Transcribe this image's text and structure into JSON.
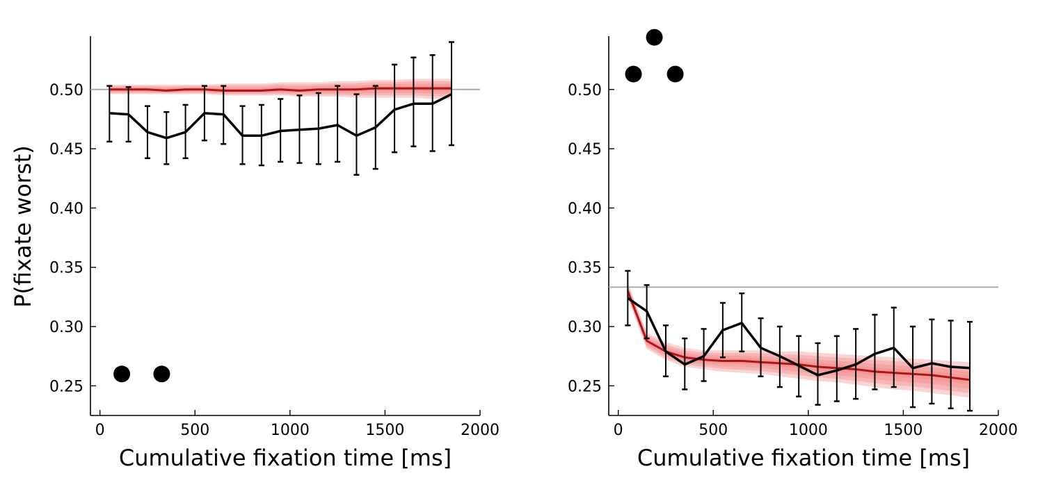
{
  "figure": {
    "ylabel": "P(fixate worst)"
  },
  "chart_data": [
    {
      "type": "line",
      "panel": "left",
      "xlabel": "Cumulative fixation time [ms]",
      "ylabel": "P(fixate worst)",
      "xlim": [
        -50,
        2000
      ],
      "ylim": [
        0.225,
        0.545
      ],
      "xticks": [
        0,
        500,
        1000,
        1500,
        2000
      ],
      "xtick_labels": [
        "0",
        "500",
        "1000",
        "1500",
        "2000"
      ],
      "yticks": [
        0.25,
        0.3,
        0.35,
        0.4,
        0.45,
        0.5
      ],
      "ytick_labels": [
        "0.25",
        "0.30",
        "0.35",
        "0.40",
        "0.45",
        "0.50"
      ],
      "chance_level": 0.5,
      "grid": false,
      "x": [
        50,
        150,
        250,
        350,
        450,
        550,
        650,
        750,
        850,
        950,
        1050,
        1150,
        1250,
        1350,
        1450,
        1550,
        1650,
        1750,
        1850
      ],
      "series": [
        {
          "role": "data",
          "values": [
            0.48,
            0.479,
            0.464,
            0.459,
            0.464,
            0.48,
            0.479,
            0.461,
            0.461,
            0.465,
            0.466,
            0.467,
            0.47,
            0.461,
            0.468,
            0.483,
            0.488,
            0.488,
            0.496
          ],
          "err_low": [
            0.456,
            0.456,
            0.442,
            0.437,
            0.442,
            0.457,
            0.454,
            0.437,
            0.436,
            0.439,
            0.438,
            0.437,
            0.439,
            0.428,
            0.433,
            0.447,
            0.452,
            0.448,
            0.453
          ],
          "err_high": [
            0.503,
            0.502,
            0.486,
            0.481,
            0.487,
            0.503,
            0.503,
            0.486,
            0.487,
            0.492,
            0.495,
            0.497,
            0.503,
            0.496,
            0.503,
            0.521,
            0.527,
            0.529,
            0.54
          ],
          "color": "#000000"
        },
        {
          "role": "model-mean",
          "values": [
            0.5,
            0.5,
            0.5,
            0.499,
            0.5,
            0.5,
            0.499,
            0.499,
            0.499,
            0.5,
            0.499,
            0.5,
            0.5,
            0.5,
            0.501,
            0.501,
            0.501,
            0.501,
            0.501
          ],
          "band_low": [
            0.496,
            0.496,
            0.496,
            0.496,
            0.496,
            0.496,
            0.495,
            0.495,
            0.495,
            0.495,
            0.494,
            0.494,
            0.494,
            0.493,
            0.493,
            0.493,
            0.493,
            0.492,
            0.492
          ],
          "band_high": [
            0.504,
            0.504,
            0.504,
            0.504,
            0.504,
            0.504,
            0.505,
            0.505,
            0.505,
            0.506,
            0.506,
            0.506,
            0.507,
            0.507,
            0.508,
            0.508,
            0.509,
            0.509,
            0.509
          ],
          "color": "#b01515",
          "band_color": "#f08080"
        }
      ],
      "markers": {
        "x": [
          115,
          325
        ],
        "y": [
          0.26,
          0.26
        ],
        "color": "#000000"
      }
    },
    {
      "type": "line",
      "panel": "right",
      "xlabel": "Cumulative fixation time [ms]",
      "ylabel": "",
      "xlim": [
        -50,
        2000
      ],
      "ylim": [
        0.225,
        0.545
      ],
      "xticks": [
        0,
        500,
        1000,
        1500,
        2000
      ],
      "xtick_labels": [
        "0",
        "500",
        "1000",
        "1500",
        "2000"
      ],
      "yticks": [
        0.25,
        0.3,
        0.35,
        0.4,
        0.45,
        0.5
      ],
      "ytick_labels": [
        "0.25",
        "0.30",
        "0.35",
        "0.40",
        "0.45",
        "0.50"
      ],
      "chance_level": 0.3333,
      "grid": false,
      "x": [
        50,
        150,
        250,
        350,
        450,
        550,
        650,
        750,
        850,
        950,
        1050,
        1150,
        1250,
        1350,
        1450,
        1550,
        1650,
        1750,
        1850
      ],
      "series": [
        {
          "role": "data",
          "values": [
            0.324,
            0.313,
            0.279,
            0.268,
            0.275,
            0.297,
            0.303,
            0.282,
            0.275,
            0.267,
            0.259,
            0.263,
            0.268,
            0.277,
            0.282,
            0.265,
            0.269,
            0.266,
            0.265
          ],
          "err_low": [
            0.301,
            0.29,
            0.258,
            0.247,
            0.254,
            0.274,
            0.279,
            0.258,
            0.249,
            0.241,
            0.234,
            0.237,
            0.239,
            0.247,
            0.249,
            0.232,
            0.235,
            0.231,
            0.229
          ],
          "err_high": [
            0.347,
            0.335,
            0.301,
            0.29,
            0.298,
            0.32,
            0.328,
            0.307,
            0.3,
            0.292,
            0.286,
            0.292,
            0.298,
            0.31,
            0.316,
            0.3,
            0.306,
            0.305,
            0.304
          ],
          "color": "#000000"
        },
        {
          "role": "model-mean",
          "values": [
            0.33,
            0.288,
            0.279,
            0.274,
            0.272,
            0.271,
            0.271,
            0.27,
            0.269,
            0.268,
            0.266,
            0.265,
            0.264,
            0.262,
            0.261,
            0.26,
            0.259,
            0.257,
            0.255
          ],
          "band_low": [
            0.324,
            0.281,
            0.272,
            0.266,
            0.264,
            0.262,
            0.261,
            0.26,
            0.258,
            0.256,
            0.254,
            0.253,
            0.251,
            0.249,
            0.247,
            0.246,
            0.244,
            0.242,
            0.24
          ],
          "band_high": [
            0.337,
            0.295,
            0.287,
            0.282,
            0.28,
            0.28,
            0.28,
            0.28,
            0.279,
            0.279,
            0.278,
            0.277,
            0.276,
            0.275,
            0.274,
            0.273,
            0.272,
            0.271,
            0.27
          ],
          "color": "#b01515",
          "band_color": "#f08080"
        }
      ],
      "markers": {
        "x": [
          80,
          190,
          300
        ],
        "y": [
          0.513,
          0.544,
          0.513
        ],
        "color": "#000000"
      }
    }
  ]
}
